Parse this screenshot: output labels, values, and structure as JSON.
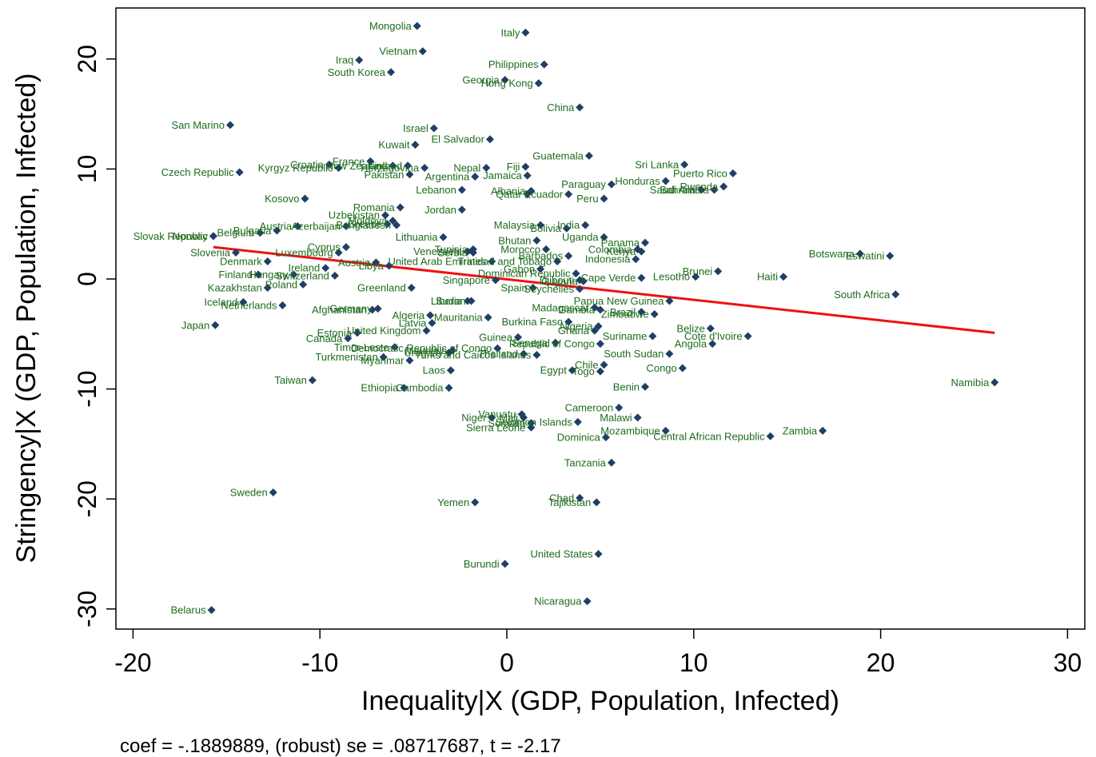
{
  "chart_data": {
    "type": "scatter",
    "xlabel": "Inequality|X (GDP, Population, Infected)",
    "ylabel": "Stringency|X (GDP, Population, Infected)",
    "note": "coef = -.1889889, (robust) se = .08717687, t = -2.17",
    "xlim": [
      -21,
      31
    ],
    "ylim": [
      -32.5,
      24.5
    ],
    "xticks": [
      "-20",
      "-10",
      "0",
      "10",
      "20",
      "30"
    ],
    "yticks": [
      "-30",
      "-20",
      "-10",
      "0",
      "10",
      "20"
    ],
    "grid": false,
    "marker_color": "#1f3f66",
    "label_color": "#1e6b1e",
    "fit_line_color": "#ee1111",
    "fit_line": {
      "x": [
        -15.7,
        26.1
      ],
      "y": [
        2.9,
        -4.9
      ]
    },
    "points": [
      {
        "label": "Mongolia",
        "x": -4.8,
        "y": 23.0
      },
      {
        "label": "Italy",
        "x": 1.0,
        "y": 22.4
      },
      {
        "label": "Vietnam",
        "x": -4.5,
        "y": 20.7
      },
      {
        "label": "Iraq",
        "x": -7.9,
        "y": 19.9
      },
      {
        "label": "Philippines",
        "x": 2.0,
        "y": 19.5
      },
      {
        "label": "South Korea",
        "x": -6.2,
        "y": 18.8
      },
      {
        "label": "Georgia",
        "x": -0.1,
        "y": 18.1
      },
      {
        "label": "Hong Kong",
        "x": 1.7,
        "y": 17.8
      },
      {
        "label": "China",
        "x": 3.9,
        "y": 15.6
      },
      {
        "label": "San Marino",
        "x": -14.8,
        "y": 14.0
      },
      {
        "label": "Israel",
        "x": -3.9,
        "y": 13.7
      },
      {
        "label": "El Salvador",
        "x": -0.9,
        "y": 12.7
      },
      {
        "label": "Kuwait",
        "x": -4.9,
        "y": 12.2
      },
      {
        "label": "Guatemala",
        "x": 4.4,
        "y": 11.2
      },
      {
        "label": "France",
        "x": -7.3,
        "y": 10.7
      },
      {
        "label": "Sri Lanka",
        "x": 9.5,
        "y": 10.4
      },
      {
        "label": "Croatia",
        "x": -9.5,
        "y": 10.4
      },
      {
        "label": "New Zealand",
        "x": -6.1,
        "y": 10.3
      },
      {
        "label": "Kyrgyz Republic",
        "x": -9.0,
        "y": 10.1
      },
      {
        "label": "Finland",
        "x": -5.3,
        "y": 10.3
      },
      {
        "label": "Nepal",
        "x": -1.1,
        "y": 10.1
      },
      {
        "label": "Herzegovina",
        "x": -4.4,
        "y": 10.1
      },
      {
        "label": "Fiji",
        "x": 1.0,
        "y": 10.2
      },
      {
        "label": "Czech Republic",
        "x": -14.3,
        "y": 9.7
      },
      {
        "label": "Puerto Rico",
        "x": 12.1,
        "y": 9.6
      },
      {
        "label": "Pakistan",
        "x": -5.2,
        "y": 9.5
      },
      {
        "label": "Argentina",
        "x": -1.7,
        "y": 9.3
      },
      {
        "label": "Jamaica",
        "x": 1.1,
        "y": 9.4
      },
      {
        "label": "Honduras",
        "x": 8.5,
        "y": 8.9
      },
      {
        "label": "Paraguay",
        "x": 5.6,
        "y": 8.6
      },
      {
        "label": "Rwanda",
        "x": 11.6,
        "y": 8.4
      },
      {
        "label": "Saudi Arabia",
        "x": 11.1,
        "y": 8.1
      },
      {
        "label": "Bahrain",
        "x": 10.4,
        "y": 8.1
      },
      {
        "label": "Lebanon",
        "x": -2.4,
        "y": 8.1
      },
      {
        "label": "Albania",
        "x": 1.3,
        "y": 8.0
      },
      {
        "label": "Qatar",
        "x": 1.1,
        "y": 7.7
      },
      {
        "label": "Ecuador",
        "x": 3.3,
        "y": 7.7
      },
      {
        "label": "Peru",
        "x": 5.2,
        "y": 7.3
      },
      {
        "label": "Kosovo",
        "x": -10.8,
        "y": 7.3
      },
      {
        "label": "Romania",
        "x": -5.7,
        "y": 6.5
      },
      {
        "label": "Jordan",
        "x": -2.4,
        "y": 6.3
      },
      {
        "label": "Uzbekistan",
        "x": -6.5,
        "y": 5.8
      },
      {
        "label": "Moldova",
        "x": -6.1,
        "y": 5.3
      },
      {
        "label": "Greece",
        "x": -6.4,
        "y": 5.0
      },
      {
        "label": "Bangladesh",
        "x": -5.9,
        "y": 4.9
      },
      {
        "label": "Malaysia",
        "x": 1.8,
        "y": 4.9
      },
      {
        "label": "India",
        "x": 4.2,
        "y": 4.9
      },
      {
        "label": "Bolivia",
        "x": 3.2,
        "y": 4.6
      },
      {
        "label": "Austria",
        "x": -11.2,
        "y": 4.8
      },
      {
        "label": "Azerbaijan",
        "x": -8.6,
        "y": 4.8
      },
      {
        "label": "Bulgaria",
        "x": -12.3,
        "y": 4.4
      },
      {
        "label": "Belgium",
        "x": -13.2,
        "y": 4.2
      },
      {
        "label": "Norway",
        "x": -15.7,
        "y": 3.9
      },
      {
        "label": "Slovak Republic",
        "x": -15.7,
        "y": 3.9
      },
      {
        "label": "Lithuania",
        "x": -3.4,
        "y": 3.8
      },
      {
        "label": "Uganda",
        "x": 5.2,
        "y": 3.8
      },
      {
        "label": "Bhutan",
        "x": 1.6,
        "y": 3.5
      },
      {
        "label": "Panama",
        "x": 7.4,
        "y": 3.3
      },
      {
        "label": "Cyprus",
        "x": -8.6,
        "y": 2.9
      },
      {
        "label": "Tunisia",
        "x": -1.8,
        "y": 2.7
      },
      {
        "label": "Morocco",
        "x": 2.1,
        "y": 2.7
      },
      {
        "label": "Colombia",
        "x": 7.0,
        "y": 2.7
      },
      {
        "label": "Kenya",
        "x": 7.2,
        "y": 2.5
      },
      {
        "label": "Slovenia",
        "x": -14.5,
        "y": 2.4
      },
      {
        "label": "Luxembourg",
        "x": -9.0,
        "y": 2.4
      },
      {
        "label": "Venezuela",
        "x": -2.1,
        "y": 2.5
      },
      {
        "label": "Serbia",
        "x": -1.8,
        "y": 2.4
      },
      {
        "label": "Barbados",
        "x": 3.3,
        "y": 2.1
      },
      {
        "label": "Denmark",
        "x": -12.8,
        "y": 1.6
      },
      {
        "label": "Indonesia",
        "x": 6.9,
        "y": 1.8
      },
      {
        "label": "United Arab Emirates",
        "x": -0.8,
        "y": 1.6
      },
      {
        "label": "Trinidad and Tobago",
        "x": 2.7,
        "y": 1.6
      },
      {
        "label": "Austria (2)",
        "x": -7.0,
        "y": 1.5
      },
      {
        "label": "Botswana",
        "x": 18.9,
        "y": 2.3
      },
      {
        "label": "Eswatini",
        "x": 20.5,
        "y": 2.1
      },
      {
        "label": "Ireland",
        "x": -9.7,
        "y": 1.0
      },
      {
        "label": "Libya",
        "x": -6.3,
        "y": 1.2
      },
      {
        "label": "Gabon",
        "x": 1.8,
        "y": 0.9
      },
      {
        "label": "Brunei",
        "x": 11.3,
        "y": 0.7
      },
      {
        "label": "Dominican Republic",
        "x": 3.7,
        "y": 0.5
      },
      {
        "label": "Finland",
        "x": -13.3,
        "y": 0.4
      },
      {
        "label": "Hungary",
        "x": -11.4,
        "y": 0.4
      },
      {
        "label": "Switzerland",
        "x": -9.2,
        "y": 0.3
      },
      {
        "label": "Cape Verde",
        "x": 7.2,
        "y": 0.1
      },
      {
        "label": "Lesotho",
        "x": 10.1,
        "y": 0.2
      },
      {
        "label": "Haiti",
        "x": 14.8,
        "y": 0.2
      },
      {
        "label": "Singapore",
        "x": -0.6,
        "y": -0.1
      },
      {
        "label": "Guyana",
        "x": 4.1,
        "y": -0.2
      },
      {
        "label": "Djibouti",
        "x": 3.9,
        "y": -0.1
      },
      {
        "label": "Poland",
        "x": -10.9,
        "y": -0.5
      },
      {
        "label": "Kazakhstan",
        "x": -12.8,
        "y": -0.8
      },
      {
        "label": "Greenland",
        "x": -5.1,
        "y": -0.8
      },
      {
        "label": "Spain",
        "x": 1.4,
        "y": -0.8
      },
      {
        "label": "Seychelles",
        "x": 3.9,
        "y": -0.9
      },
      {
        "label": "South Africa",
        "x": 20.8,
        "y": -1.4
      },
      {
        "label": "Papua New Guinea",
        "x": 8.7,
        "y": -2.0
      },
      {
        "label": "Iceland",
        "x": -14.1,
        "y": -2.1
      },
      {
        "label": "Netherlands",
        "x": -12.0,
        "y": -2.4
      },
      {
        "label": "Liberia",
        "x": -2.1,
        "y": -2.0
      },
      {
        "label": "Sudan",
        "x": -1.9,
        "y": -2.0
      },
      {
        "label": "Madagascar",
        "x": 4.7,
        "y": -2.6
      },
      {
        "label": "Gambia",
        "x": 5.0,
        "y": -2.8
      },
      {
        "label": "Brazil",
        "x": 7.2,
        "y": -3.0
      },
      {
        "label": "Zimbabwe",
        "x": 7.9,
        "y": -3.2
      },
      {
        "label": "Afghanistan",
        "x": -7.2,
        "y": -2.8
      },
      {
        "label": "Germany",
        "x": -6.9,
        "y": -2.7
      },
      {
        "label": "Algeria",
        "x": -4.1,
        "y": -3.3
      },
      {
        "label": "Mauritania",
        "x": -1.0,
        "y": -3.5
      },
      {
        "label": "Latvia",
        "x": -4.0,
        "y": -4.0
      },
      {
        "label": "Burkina Faso",
        "x": 3.3,
        "y": -3.9
      },
      {
        "label": "Japan",
        "x": -15.6,
        "y": -4.2
      },
      {
        "label": "Nigeria",
        "x": 4.9,
        "y": -4.3
      },
      {
        "label": "Ghana",
        "x": 4.7,
        "y": -4.7
      },
      {
        "label": "Belize",
        "x": 10.9,
        "y": -4.5
      },
      {
        "label": "Estonia",
        "x": -8.0,
        "y": -4.9
      },
      {
        "label": "United Kingdom",
        "x": -4.3,
        "y": -4.7
      },
      {
        "label": "Suriname",
        "x": 7.8,
        "y": -5.2
      },
      {
        "label": "Cote d'Ivoire",
        "x": 12.9,
        "y": -5.2
      },
      {
        "label": "Canada",
        "x": -8.5,
        "y": -5.4
      },
      {
        "label": "Guinea",
        "x": 0.6,
        "y": -5.3
      },
      {
        "label": "Angola",
        "x": 11.0,
        "y": -5.9
      },
      {
        "label": "Republic of Congo",
        "x": 5.0,
        "y": -5.9
      },
      {
        "label": "Senegal",
        "x": 2.6,
        "y": -5.8
      },
      {
        "label": "Democratic Republic of Congo",
        "x": -0.5,
        "y": -6.3
      },
      {
        "label": "Timor-Leste",
        "x": -6.0,
        "y": -6.2
      },
      {
        "label": "South Sudan",
        "x": 8.7,
        "y": -6.8
      },
      {
        "label": "Mauritius",
        "x": -2.9,
        "y": -6.5
      },
      {
        "label": "Uruguay",
        "x": -3.1,
        "y": -6.7
      },
      {
        "label": "Thailand",
        "x": 0.9,
        "y": -6.8
      },
      {
        "label": "Turks and Caicos Islands",
        "x": 1.6,
        "y": -6.9
      },
      {
        "label": "Turkmenistan",
        "x": -6.6,
        "y": -7.1
      },
      {
        "label": "Myanmar",
        "x": -5.2,
        "y": -7.4
      },
      {
        "label": "Chile",
        "x": 5.2,
        "y": -7.8
      },
      {
        "label": "Togo",
        "x": 5.0,
        "y": -8.4
      },
      {
        "label": "Egypt",
        "x": 3.5,
        "y": -8.3
      },
      {
        "label": "Congo",
        "x": 9.4,
        "y": -8.1
      },
      {
        "label": "Laos",
        "x": -3.0,
        "y": -8.3
      },
      {
        "label": "Taiwan",
        "x": -10.4,
        "y": -9.2
      },
      {
        "label": "Namibia",
        "x": 26.1,
        "y": -9.4
      },
      {
        "label": "Benin",
        "x": 7.4,
        "y": -9.8
      },
      {
        "label": "Ethiopia",
        "x": -5.5,
        "y": -9.9
      },
      {
        "label": "Cambodia",
        "x": -3.1,
        "y": -9.9
      },
      {
        "label": "Cameroon",
        "x": 6.0,
        "y": -11.7
      },
      {
        "label": "Vanuatu",
        "x": 0.8,
        "y": -12.3
      },
      {
        "label": "Niger",
        "x": -0.8,
        "y": -12.6
      },
      {
        "label": "Mali",
        "x": 0.9,
        "y": -12.6
      },
      {
        "label": "Malawi",
        "x": 7.0,
        "y": -12.6
      },
      {
        "label": "Solomon Islands",
        "x": 3.8,
        "y": -13.0
      },
      {
        "label": "Somalia",
        "x": 1.3,
        "y": -13.1
      },
      {
        "label": "Sierra Leone",
        "x": 1.3,
        "y": -13.5
      },
      {
        "label": "Mozambique",
        "x": 8.5,
        "y": -13.8
      },
      {
        "label": "Central African Republic",
        "x": 14.1,
        "y": -14.3
      },
      {
        "label": "Zambia",
        "x": 16.9,
        "y": -13.8
      },
      {
        "label": "Dominica",
        "x": 5.3,
        "y": -14.4
      },
      {
        "label": "Tanzania",
        "x": 5.6,
        "y": -16.7
      },
      {
        "label": "Sweden",
        "x": -12.5,
        "y": -19.4
      },
      {
        "label": "Chad",
        "x": 3.9,
        "y": -19.9
      },
      {
        "label": "Yemen",
        "x": -1.7,
        "y": -20.3
      },
      {
        "label": "Tajikistan",
        "x": 4.8,
        "y": -20.3
      },
      {
        "label": "United States",
        "x": 4.9,
        "y": -25.0
      },
      {
        "label": "Burundi",
        "x": -0.1,
        "y": -25.9
      },
      {
        "label": "Nicaragua",
        "x": 4.3,
        "y": -29.3
      },
      {
        "label": "Belarus",
        "x": -15.8,
        "y": -30.1
      }
    ]
  }
}
